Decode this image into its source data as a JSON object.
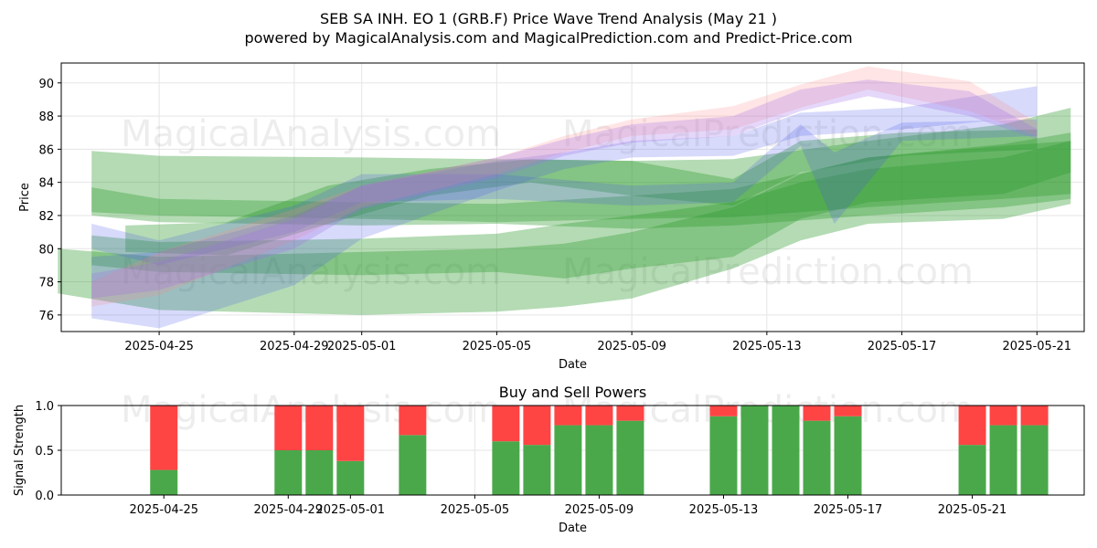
{
  "title_line1": "SEB SA INH.  EO 1 (GRB.F) Price Wave Trend Analysis (May 21 )",
  "title_line2": "powered by MagicalAnalysis.com and MagicalPrediction.com and Predict-Price.com",
  "watermarks": [
    "MagicalAnalysis.com",
    "MagicalPrediction.com"
  ],
  "colors": {
    "green_band": "#2e9a2e",
    "blue_band": "#4a55e8",
    "red_band": "#ff8a8a",
    "purple_band": "#a070e8",
    "buy": "#4aa84a",
    "sell": "#ff4444",
    "grid": "#e5e5e5"
  },
  "chart_data": [
    {
      "type": "area",
      "title": "",
      "xlabel": "Date",
      "ylabel": "Price",
      "ylim": [
        75,
        91.2
      ],
      "yticks": [
        76,
        78,
        80,
        82,
        84,
        86,
        88,
        90
      ],
      "xticks": [
        "2025-04-25",
        "2025-04-29",
        "2025-05-01",
        "2025-05-05",
        "2025-05-09",
        "2025-05-13",
        "2025-05-17",
        "2025-05-21"
      ],
      "xlim": [
        "2025-04-22",
        "2025-05-22"
      ],
      "grid": true,
      "series": [
        {
          "color": "green",
          "x": [
            "2025-04-23",
            "2025-04-25",
            "2025-05-01",
            "2025-05-05",
            "2025-05-09",
            "2025-05-12",
            "2025-05-16",
            "2025-05-20",
            "2025-05-22"
          ],
          "upper": [
            85.9,
            85.6,
            85.5,
            85.4,
            85.3,
            85.4,
            86.5,
            87.5,
            88.5
          ],
          "lower": [
            82.0,
            81.6,
            81.4,
            81.5,
            81.2,
            81.4,
            82.0,
            82.5,
            83.0
          ]
        },
        {
          "color": "green",
          "x": [
            "2025-04-23",
            "2025-04-25",
            "2025-05-01",
            "2025-05-05",
            "2025-05-09",
            "2025-05-12",
            "2025-05-16",
            "2025-05-20",
            "2025-05-22"
          ],
          "upper": [
            83.7,
            83.0,
            82.8,
            82.7,
            83.2,
            83.6,
            85.5,
            86.2,
            86.5
          ],
          "lower": [
            82.2,
            82.0,
            81.8,
            81.6,
            81.8,
            81.9,
            82.5,
            83.0,
            83.3
          ]
        },
        {
          "color": "green",
          "x": [
            "2025-04-22",
            "2025-04-25",
            "2025-05-01",
            "2025-05-05",
            "2025-05-07",
            "2025-05-09",
            "2025-05-12",
            "2025-05-14",
            "2025-05-16",
            "2025-05-20",
            "2025-05-22"
          ],
          "upper": [
            80.0,
            79.5,
            79.8,
            80.0,
            80.3,
            81.0,
            82.5,
            84.5,
            85.5,
            86.3,
            87.0
          ],
          "lower": [
            77.3,
            76.3,
            76.0,
            76.2,
            76.5,
            77.0,
            78.8,
            80.5,
            81.5,
            81.8,
            82.7
          ]
        },
        {
          "color": "green",
          "x": [
            "2025-04-23",
            "2025-04-25",
            "2025-05-01",
            "2025-05-05",
            "2025-05-07",
            "2025-05-09",
            "2025-05-12",
            "2025-05-14",
            "2025-05-16",
            "2025-05-20",
            "2025-05-22"
          ],
          "upper": [
            80.8,
            80.4,
            80.6,
            80.9,
            81.5,
            82.0,
            82.8,
            84.0,
            84.8,
            85.5,
            86.5
          ],
          "lower": [
            79.0,
            78.6,
            78.4,
            78.6,
            78.2,
            78.8,
            79.5,
            81.8,
            82.8,
            83.3,
            84.6
          ]
        },
        {
          "color": "green",
          "x": [
            "2025-04-24",
            "2025-04-27",
            "2025-04-30",
            "2025-05-03",
            "2025-05-06",
            "2025-05-09",
            "2025-05-12",
            "2025-05-14",
            "2025-05-17",
            "2025-05-21"
          ],
          "upper": [
            81.4,
            81.6,
            83.8,
            84.8,
            85.4,
            85.3,
            84.2,
            86.5,
            87.0,
            87.2
          ],
          "lower": [
            79.8,
            79.6,
            81.5,
            83.2,
            84.0,
            83.2,
            82.6,
            84.6,
            85.6,
            86.0
          ]
        },
        {
          "color": "blue",
          "x": [
            "2025-04-23",
            "2025-04-25",
            "2025-04-29",
            "2025-05-01",
            "2025-05-05",
            "2025-05-07",
            "2025-05-09",
            "2025-05-12",
            "2025-05-14",
            "2025-05-17",
            "2025-05-21"
          ],
          "upper": [
            79.5,
            79.8,
            82.0,
            83.8,
            85.3,
            85.8,
            86.5,
            86.8,
            88.2,
            88.5,
            89.8
          ],
          "lower": [
            75.8,
            75.2,
            77.8,
            80.6,
            83.5,
            84.8,
            85.5,
            85.6,
            86.8,
            87.2,
            88.0
          ]
        },
        {
          "color": "blue",
          "x": [
            "2025-04-23",
            "2025-04-25",
            "2025-04-29",
            "2025-05-01",
            "2025-05-05",
            "2025-05-09",
            "2025-05-12",
            "2025-05-13",
            "2025-05-14",
            "2025-05-15",
            "2025-05-17",
            "2025-05-21"
          ],
          "upper": [
            81.5,
            80.5,
            82.6,
            84.5,
            84.5,
            83.8,
            84.0,
            85.8,
            87.5,
            85.8,
            87.6,
            87.8
          ],
          "lower": [
            80.0,
            79.0,
            81.0,
            82.8,
            83.0,
            82.6,
            82.8,
            84.5,
            86.2,
            81.5,
            86.5,
            86.8
          ]
        },
        {
          "color": "red",
          "x": [
            "2025-04-23",
            "2025-04-25",
            "2025-04-29",
            "2025-05-01",
            "2025-05-05",
            "2025-05-07",
            "2025-05-09",
            "2025-05-12",
            "2025-05-14",
            "2025-05-16",
            "2025-05-19",
            "2025-05-21"
          ],
          "upper": [
            78.0,
            79.8,
            82.4,
            83.8,
            85.5,
            86.8,
            87.8,
            88.6,
            89.9,
            91.0,
            90.1,
            87.6
          ],
          "lower": [
            76.5,
            77.2,
            80.5,
            82.5,
            84.5,
            85.8,
            86.8,
            87.2,
            88.5,
            89.6,
            88.3,
            86.8
          ]
        },
        {
          "color": "purple",
          "x": [
            "2025-04-23",
            "2025-04-25",
            "2025-04-29",
            "2025-05-01",
            "2025-05-05",
            "2025-05-07",
            "2025-05-09",
            "2025-05-12",
            "2025-05-14",
            "2025-05-16",
            "2025-05-19",
            "2025-05-21"
          ],
          "upper": [
            78.5,
            79.2,
            81.8,
            83.8,
            85.5,
            86.6,
            87.5,
            88.0,
            89.6,
            90.2,
            89.5,
            87.2
          ],
          "lower": [
            77.0,
            77.5,
            80.0,
            82.4,
            84.3,
            85.6,
            86.4,
            86.8,
            88.3,
            89.2,
            88.0,
            86.6
          ]
        }
      ]
    },
    {
      "type": "bar",
      "title": "Buy and Sell Powers",
      "xlabel": "Date",
      "ylabel": "Signal Strength",
      "ylim": [
        0,
        1.0
      ],
      "yticks": [
        0.0,
        0.5,
        1.0
      ],
      "xticks": [
        "2025-04-25",
        "2025-04-29",
        "2025-05-01",
        "2025-05-05",
        "2025-05-09",
        "2025-05-13",
        "2025-05-17",
        "2025-05-21"
      ],
      "xlim": [
        "2025-04-22",
        "2025-05-22"
      ],
      "grid": true,
      "x": [
        "2025-04-25",
        "2025-04-29",
        "2025-04-30",
        "2025-05-01",
        "2025-05-03",
        "2025-05-06",
        "2025-05-07",
        "2025-05-08",
        "2025-05-09",
        "2025-05-10",
        "2025-05-13",
        "2025-05-14",
        "2025-05-15",
        "2025-05-16",
        "2025-05-17",
        "2025-05-21",
        "2025-05-22",
        "2025-05-23"
      ],
      "buy": [
        0.28,
        0.5,
        0.5,
        0.38,
        0.67,
        0.6,
        0.56,
        0.78,
        0.78,
        0.83,
        0.88,
        1.0,
        1.0,
        0.83,
        0.88,
        0.56,
        0.78,
        0.78
      ],
      "sell": [
        0.72,
        0.5,
        0.5,
        0.62,
        0.33,
        0.4,
        0.44,
        0.22,
        0.22,
        0.17,
        0.12,
        0.0,
        0.0,
        0.17,
        0.12,
        0.44,
        0.22,
        0.22
      ]
    }
  ]
}
